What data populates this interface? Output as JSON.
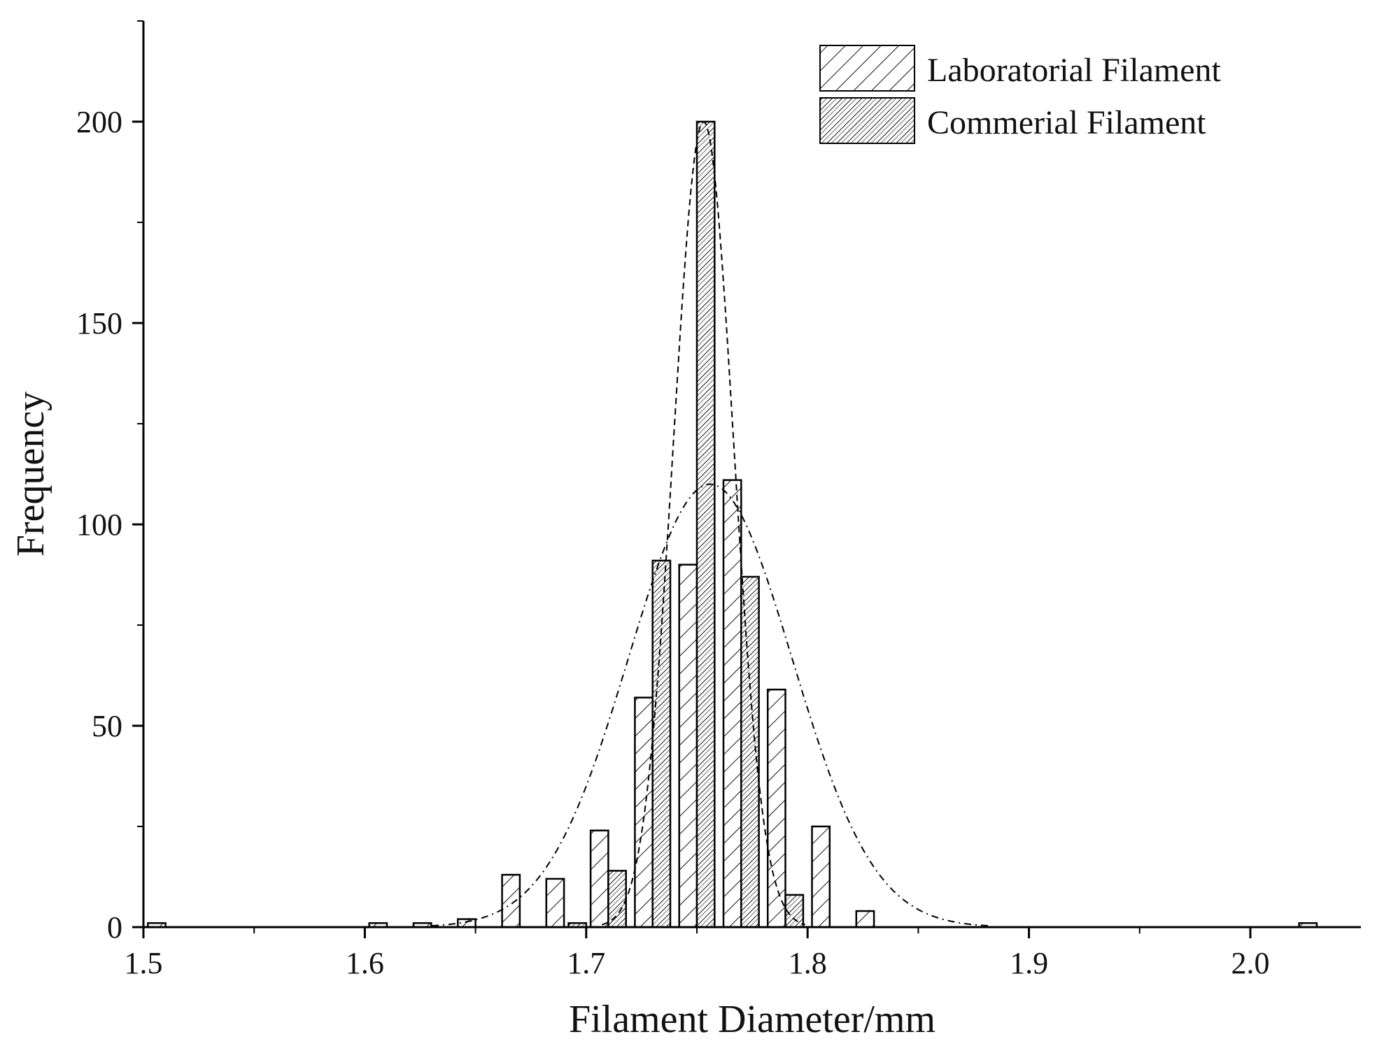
{
  "chart_data": {
    "type": "bar",
    "xlabel": "Filament Diameter/mm",
    "ylabel": "Frequency",
    "xlim": [
      1.5,
      2.05
    ],
    "ylim": [
      0,
      225
    ],
    "x_ticks": [
      "1.5",
      "1.6",
      "1.7",
      "1.8",
      "1.9",
      "2.0"
    ],
    "y_ticks": [
      "0",
      "50",
      "100",
      "150",
      "200"
    ],
    "grid": false,
    "legend_position": "top-right",
    "bin_width": 0.008,
    "series": [
      {
        "name": "Laboratorial Filament",
        "pattern": "diagonal-hatch",
        "x": [
          1.506,
          1.606,
          1.626,
          1.646,
          1.666,
          1.686,
          1.706,
          1.726,
          1.746,
          1.766,
          1.786,
          1.806,
          1.826,
          2.026
        ],
        "values": [
          1,
          1,
          1,
          2,
          13,
          12,
          24,
          57,
          90,
          111,
          59,
          25,
          4,
          1
        ]
      },
      {
        "name": "Commerial Filament",
        "pattern": "dense-diagonal-hatch",
        "x": [
          1.696,
          1.714,
          1.734,
          1.754,
          1.774,
          1.794
        ],
        "values": [
          1,
          14,
          91,
          200,
          87,
          8
        ]
      }
    ],
    "fit_curves": [
      {
        "series": "Laboratorial Filament",
        "style": "dash-dot",
        "mean": 1.756,
        "sigma": 0.037,
        "peak": 110
      },
      {
        "series": "Commerial Filament",
        "style": "dashed",
        "mean": 1.753,
        "sigma": 0.0135,
        "peak": 200
      }
    ],
    "colors": {
      "axis": "#000000",
      "bar_fill": "#ffffff",
      "hatch": "#111111",
      "hatch_accent": "#9a9a9a"
    }
  }
}
